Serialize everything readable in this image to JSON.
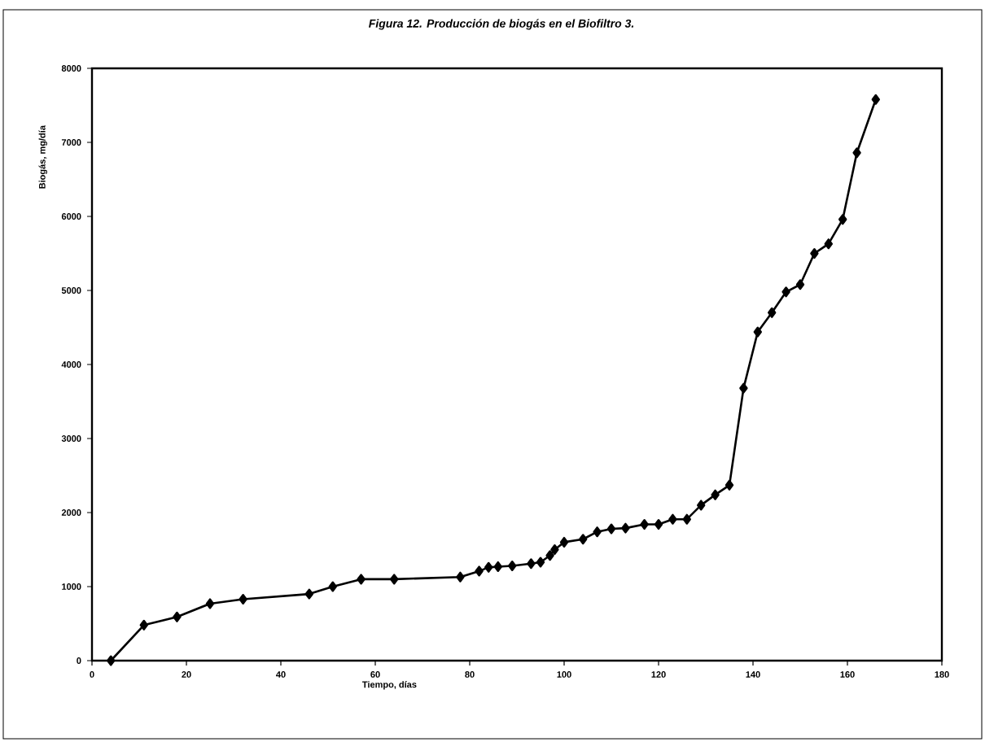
{
  "chart_data": {
    "type": "line",
    "title": "Figura 12. Producción de biogás en el Biofiltro 3.",
    "xlabel": "Tiempo, días",
    "ylabel": "Biogás, mg/día",
    "x": [
      4,
      11,
      18,
      25,
      32,
      46,
      51,
      57,
      64,
      78,
      82,
      84,
      86,
      89,
      93,
      95,
      97,
      98,
      100,
      104,
      107,
      110,
      113,
      117,
      120,
      123,
      126,
      129,
      132,
      135,
      138,
      141,
      144,
      147,
      150,
      153,
      156,
      159,
      162,
      166
    ],
    "series": [
      {
        "color": "#000000",
        "values": [
          0,
          480,
          590,
          770,
          830,
          900,
          1000,
          1100,
          1100,
          1130,
          1210,
          1260,
          1270,
          1280,
          1310,
          1330,
          1420,
          1500,
          1600,
          1640,
          1740,
          1780,
          1790,
          1840,
          1840,
          1910,
          1910,
          2100,
          2240,
          2370,
          3680,
          4440,
          4700,
          4980,
          5080,
          5500,
          5630,
          5960,
          6860,
          7580
        ]
      }
    ],
    "xlim": [
      0,
      180
    ],
    "ylim": [
      0,
      8000
    ],
    "xticks": [
      0,
      20,
      40,
      60,
      80,
      100,
      120,
      140,
      160,
      180
    ],
    "yticks": [
      0,
      1000,
      2000,
      3000,
      4000,
      5000,
      6000,
      7000,
      8000
    ],
    "marker": "diamond",
    "line_style": "solid"
  }
}
